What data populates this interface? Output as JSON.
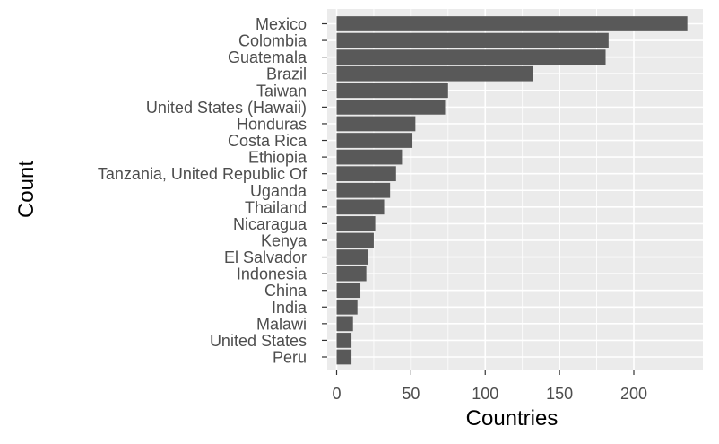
{
  "chart_data": {
    "type": "bar",
    "orientation": "horizontal",
    "xlabel": "Countries",
    "ylabel": "Count",
    "xlim": [
      0,
      242
    ],
    "x_ticks": [
      0,
      50,
      100,
      150,
      200
    ],
    "grid": true,
    "categories": [
      "Mexico",
      "Colombia",
      "Guatemala",
      "Brazil",
      "Taiwan",
      "United States (Hawaii)",
      "Honduras",
      "Costa Rica",
      "Ethiopia",
      "Tanzania, United Republic Of",
      "Uganda",
      "Thailand",
      "Nicaragua",
      "Kenya",
      "El Salvador",
      "Indonesia",
      "China",
      "India",
      "Malawi",
      "United States",
      "Peru"
    ],
    "values": [
      236,
      183,
      181,
      132,
      75,
      73,
      53,
      51,
      44,
      40,
      36,
      32,
      26,
      25,
      21,
      20,
      16,
      14,
      11,
      10,
      10
    ],
    "colors": {
      "bar": "#595959",
      "panel": "#ebebeb",
      "grid_major": "#ffffff",
      "tick_text": "#4d4d4d",
      "tick_mark": "#333333",
      "title_text": "#000000"
    }
  }
}
